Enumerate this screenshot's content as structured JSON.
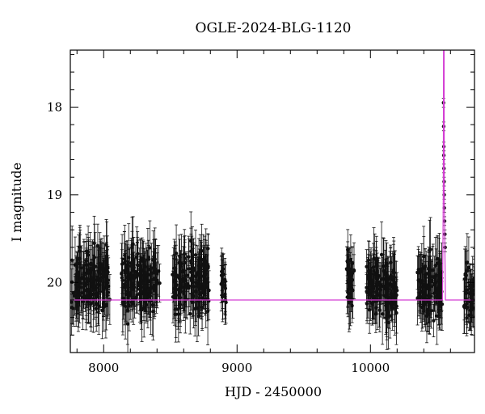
{
  "chart_data": {
    "type": "scatter",
    "title": "OGLE-2024-BLG-1120",
    "xlabel": "HJD - 2450000",
    "ylabel": "I magnitude",
    "xlim": [
      7750,
      10780
    ],
    "ylim": [
      20.8,
      17.35
    ],
    "y_inverted": true,
    "grid": false,
    "x_ticks": [
      {
        "value": 8000,
        "label": "8000"
      },
      {
        "value": 9000,
        "label": "9000"
      },
      {
        "value": 10000,
        "label": "10000"
      }
    ],
    "y_ticks": [
      {
        "value": 18,
        "label": "18"
      },
      {
        "value": 19,
        "label": "19"
      },
      {
        "value": 20,
        "label": "20"
      }
    ],
    "x_minor_step": 200,
    "y_minor_step": 0.2,
    "baseline_magnitude": 20.2,
    "seasons": [
      {
        "start": 7760,
        "end": 8050,
        "mean": 20.0,
        "scatter": 0.35,
        "err": 0.28
      },
      {
        "start": 8130,
        "end": 8420,
        "mean": 20.0,
        "scatter": 0.35,
        "err": 0.28
      },
      {
        "start": 8510,
        "end": 8790,
        "mean": 20.0,
        "scatter": 0.35,
        "err": 0.28
      },
      {
        "start": 8880,
        "end": 8920,
        "mean": 20.05,
        "scatter": 0.3,
        "err": 0.25
      },
      {
        "start": 9820,
        "end": 9880,
        "mean": 20.0,
        "scatter": 0.3,
        "err": 0.25
      },
      {
        "start": 9970,
        "end": 10200,
        "mean": 20.05,
        "scatter": 0.33,
        "err": 0.27
      },
      {
        "start": 10350,
        "end": 10540,
        "mean": 20.05,
        "scatter": 0.33,
        "err": 0.27
      },
      {
        "start": 10700,
        "end": 10780,
        "mean": 20.1,
        "scatter": 0.3,
        "err": 0.25
      }
    ],
    "event_points": [
      {
        "x": 10548,
        "y": 17.95
      },
      {
        "x": 10549,
        "y": 18.22
      },
      {
        "x": 10550,
        "y": 18.45
      },
      {
        "x": 10550,
        "y": 18.55
      },
      {
        "x": 10551,
        "y": 18.7
      },
      {
        "x": 10552,
        "y": 18.85
      },
      {
        "x": 10553,
        "y": 19.0
      },
      {
        "x": 10554,
        "y": 19.15
      },
      {
        "x": 10556,
        "y": 19.3
      },
      {
        "x": 10558,
        "y": 19.45
      },
      {
        "x": 10560,
        "y": 19.6
      }
    ],
    "model_curve": [
      {
        "x": 7750,
        "y": 20.2
      },
      {
        "x": 10500,
        "y": 20.2
      },
      {
        "x": 10540,
        "y": 20.2
      },
      {
        "x": 10546,
        "y": 19.0
      },
      {
        "x": 10548,
        "y": 17.35
      },
      {
        "x": 10552,
        "y": 17.35
      },
      {
        "x": 10554,
        "y": 19.0
      },
      {
        "x": 10562,
        "y": 20.2
      },
      {
        "x": 10780,
        "y": 20.2
      }
    ]
  }
}
